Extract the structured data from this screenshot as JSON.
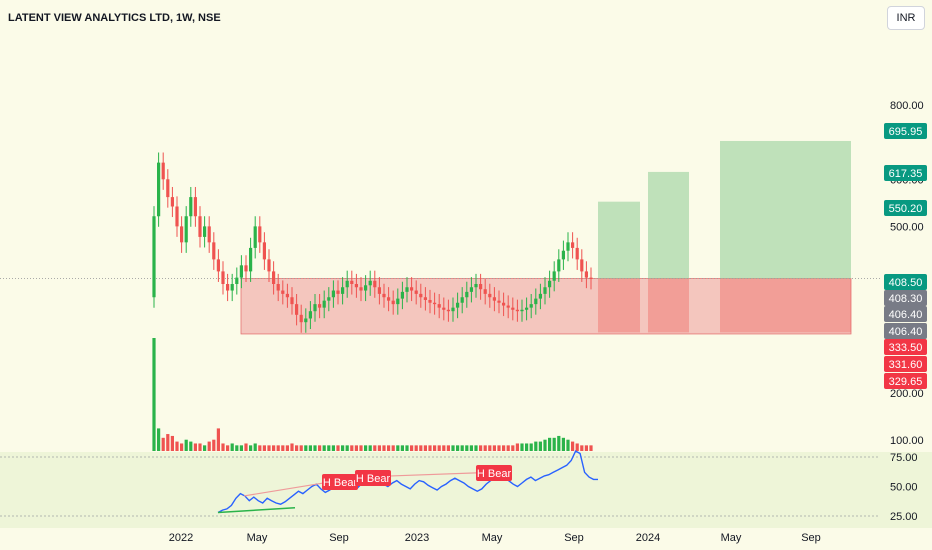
{
  "header": {
    "title": "LATENT VIEW ANALYTICS LTD, 1W, NSE",
    "currency": "INR"
  },
  "colors": {
    "background": "#fbfbe8",
    "up": "#26a69a",
    "up_candle": "#2ab34a",
    "down": "#ef5350",
    "rsi_line": "#2962ff",
    "target_zone": "#a5d6a7",
    "stop_zone": "#ef9a9a",
    "tag_green": "#089981",
    "tag_red": "#f23645",
    "tag_gray": "#787b86"
  },
  "chart_data": [
    {
      "type": "candlestick",
      "title": "LATENT VIEW ANALYTICS LTD, 1W, NSE",
      "y_scale": "log",
      "y_ticks": [
        800,
        600,
        500,
        200,
        100
      ],
      "y_tick_labels": [
        "800.00",
        "600.00",
        "500.00",
        "200.00",
        "100.00"
      ],
      "x_tick_labels": [
        "2022",
        "May",
        "Sep",
        "2023",
        "May",
        "Sep",
        "2024",
        "May",
        "Sep"
      ],
      "price_tags": [
        {
          "value": "695.95",
          "kind": "green"
        },
        {
          "value": "617.35",
          "kind": "green"
        },
        {
          "value": "550.20",
          "kind": "green"
        },
        {
          "value": "408.50",
          "kind": "green"
        },
        {
          "value": "408.30",
          "kind": "gray"
        },
        {
          "value": "406.40",
          "kind": "gray"
        },
        {
          "value": "406.40",
          "kind": "gray"
        },
        {
          "value": "333.50",
          "kind": "red"
        },
        {
          "value": "331.60",
          "kind": "red"
        },
        {
          "value": "329.65",
          "kind": "red"
        }
      ],
      "consolidation_zone": {
        "low": 329.65,
        "high": 408.5
      },
      "targets": [
        550.2,
        617.35,
        695.95
      ],
      "entry": 408.5,
      "stop": 331.6,
      "closes": [
        520,
        640,
        600,
        560,
        540,
        500,
        470,
        520,
        560,
        520,
        480,
        500,
        470,
        440,
        420,
        400,
        390,
        400,
        410,
        430,
        420,
        460,
        500,
        470,
        440,
        420,
        400,
        390,
        385,
        380,
        370,
        355,
        345,
        350,
        360,
        370,
        365,
        375,
        380,
        390,
        385,
        395,
        405,
        400,
        395,
        390,
        398,
        405,
        395,
        385,
        380,
        375,
        370,
        378,
        388,
        395,
        390,
        385,
        380,
        376,
        372,
        370,
        365,
        362,
        360,
        365,
        372,
        380,
        388,
        395,
        400,
        392,
        385,
        380,
        375,
        372,
        368,
        365,
        362,
        360,
        362,
        365,
        370,
        378,
        385,
        395,
        405,
        420,
        440,
        455,
        470,
        460,
        440,
        420,
        410,
        408
      ]
    },
    {
      "type": "bar",
      "name": "Volume",
      "values": [
        60,
        12,
        7,
        9,
        8,
        5,
        4,
        6,
        5,
        4,
        4,
        3,
        5,
        6,
        12,
        4,
        3,
        4,
        3,
        3,
        4,
        3,
        4,
        3,
        3,
        3,
        3,
        3,
        3,
        3,
        4,
        3,
        3,
        3,
        3,
        3,
        3,
        3,
        3,
        3,
        3,
        3,
        3,
        3,
        3,
        3,
        3,
        3,
        3,
        3,
        3,
        3,
        3,
        3,
        3,
        3,
        3,
        3,
        3,
        3,
        3,
        3,
        3,
        3,
        3,
        3,
        3,
        3,
        3,
        3,
        3,
        3,
        3,
        3,
        3,
        3,
        3,
        3,
        3,
        4,
        4,
        4,
        4,
        5,
        5,
        6,
        7,
        7,
        8,
        7,
        6,
        5,
        4,
        3,
        3,
        3
      ]
    },
    {
      "type": "line",
      "name": "RSI",
      "y_ticks": [
        75,
        50,
        25
      ],
      "y_tick_labels": [
        "75.00",
        "50.00",
        "25.00"
      ],
      "annotations": [
        "H Bear",
        "H Bear",
        "H Bear"
      ],
      "values": [
        28,
        30,
        31,
        34,
        40,
        44,
        42,
        38,
        41,
        38,
        36,
        40,
        38,
        36,
        35,
        37,
        40,
        43,
        46,
        44,
        47,
        50,
        52,
        48,
        45,
        47,
        50,
        55,
        58,
        55,
        50,
        48,
        52,
        56,
        60,
        58,
        55,
        52,
        50,
        53,
        55,
        52,
        50,
        48,
        52,
        55,
        54,
        51,
        49,
        47,
        50,
        52,
        55,
        57,
        55,
        53,
        50,
        48,
        46,
        48,
        52,
        55,
        58,
        60,
        62,
        55,
        52,
        50,
        53,
        56,
        58,
        55,
        57,
        59,
        60,
        62,
        64,
        66,
        68,
        72,
        80,
        78,
        62,
        58,
        56,
        56
      ]
    }
  ]
}
